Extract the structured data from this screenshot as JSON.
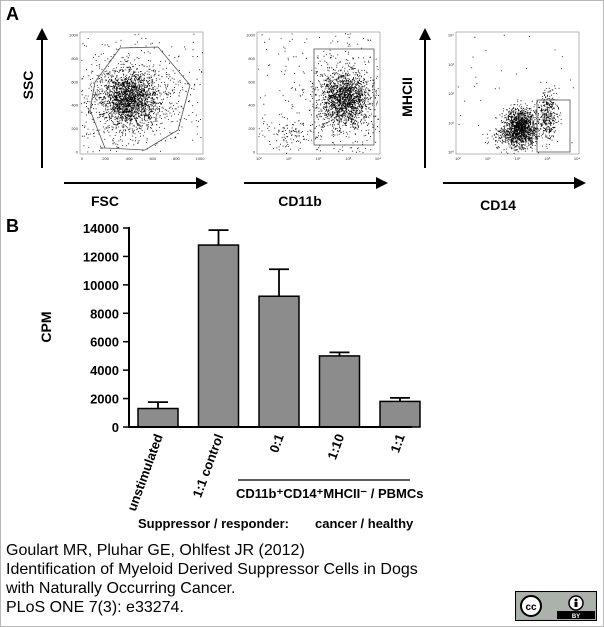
{
  "panels": {
    "a_label": "A",
    "b_label": "B"
  },
  "flow": {
    "plot1": {
      "xlabel": "FSC",
      "ylabel": "SSC",
      "xticks": [
        "0",
        "200",
        "400",
        "600",
        "800",
        "1000"
      ],
      "yticks": [
        "0",
        "200",
        "400",
        "600",
        "800",
        "1000"
      ]
    },
    "plot2": {
      "xlabel": "CD11b",
      "xticks": [
        "10⁰",
        "10¹",
        "10²",
        "10³",
        "10⁴"
      ],
      "yticks": [
        "0",
        "200",
        "400",
        "600",
        "800",
        "1000"
      ]
    },
    "plot3": {
      "xlabel": "CD14",
      "ylabel": "MHCII",
      "xticks": [
        "10⁰",
        "10¹",
        "10²",
        "10³",
        "10⁴"
      ],
      "yticks": [
        "10⁰",
        "10¹",
        "10²",
        "10³",
        "10⁴"
      ]
    }
  },
  "chart_data": {
    "type": "bar",
    "ylabel": "CPM",
    "ylim": [
      0,
      14000
    ],
    "yticks": [
      0,
      2000,
      4000,
      6000,
      8000,
      10000,
      12000,
      14000
    ],
    "categories": [
      "unstimulated",
      "1:1 control",
      "0:1",
      "1:10",
      "1:1"
    ],
    "values": [
      1300,
      12800,
      9200,
      5000,
      1800
    ],
    "errors": [
      450,
      1050,
      1900,
      250,
      250
    ],
    "bar_color": "#8c8c8c",
    "group_label": "CD11b⁺CD14⁺MHCII⁻ / PBMCs",
    "suppressor_label": "Suppressor / responder:",
    "ratio_label": "cancer / healthy"
  },
  "caption": {
    "line1": "Goulart MR, Pluhar GE, Ohlfest JR (2012)",
    "line2": "Identification of Myeloid Derived Suppressor Cells in Dogs",
    "line3": "with Naturally Occurring Cancer.",
    "line4": "PLoS ONE 7(3): e33274."
  },
  "license": {
    "icon": "cc-by-icon",
    "cc": "cc",
    "by": "BY"
  }
}
